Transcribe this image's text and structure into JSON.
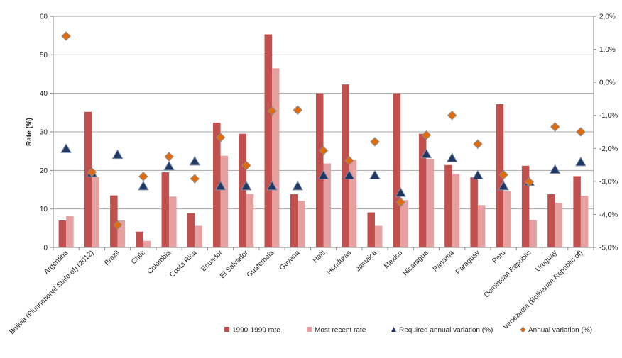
{
  "chart_data": {
    "type": "bar",
    "ylabel": "Rate (%)",
    "ylim": [
      0,
      60
    ],
    "y_ticks": [
      "0",
      "10",
      "20",
      "30",
      "40",
      "50",
      "60"
    ],
    "y2lim": [
      -5.0,
      2.0
    ],
    "y2_ticks": [
      "-5,0%",
      "-4,0%",
      "-3,0%",
      "-2,0%",
      "-1,0%",
      "0,0%",
      "1,0%",
      "2,0%"
    ],
    "grid": true,
    "legend_position": "bottom",
    "categories": [
      "Argentina",
      "Bolivia (Plurinational State of) (2012)",
      "Brazil",
      "Chile",
      "Colombia",
      "Costa Rica",
      "Ecuador",
      "El Salvador",
      "Guatemala",
      "Guyana",
      "Haiti",
      "Honduras",
      "Jamaica",
      "Mexico",
      "Nicaragua",
      "Panama",
      "Paraguay",
      "Peru",
      "Dominican Republic",
      "Uruguay",
      "Venezuela (Bolivarian Republic of)"
    ],
    "series": [
      {
        "name": "1990-1999 rate",
        "axis": "left",
        "kind": "bar",
        "color": "#c0504d",
        "values": [
          7.0,
          35.2,
          13.5,
          4.1,
          19.5,
          8.9,
          32.4,
          29.5,
          55.3,
          13.8,
          40.0,
          42.3,
          9.1,
          40.0,
          29.5,
          21.4,
          18.2,
          37.2,
          21.2,
          13.8,
          18.5
        ]
      },
      {
        "name": "Most recent rate",
        "axis": "left",
        "kind": "bar",
        "color": "#e6a0a0",
        "values": [
          8.2,
          18.3,
          7.0,
          1.7,
          13.2,
          5.6,
          23.8,
          13.9,
          46.5,
          12.1,
          21.8,
          22.8,
          5.6,
          12.3,
          23.0,
          19.1,
          11.0,
          14.6,
          7.1,
          11.6,
          13.4
        ]
      },
      {
        "name": "Required annual variation (%)",
        "axis": "right",
        "kind": "triangle",
        "color": "#1f3864",
        "values": [
          -2.02,
          -2.75,
          -2.2,
          -3.15,
          -2.55,
          -2.4,
          -3.15,
          -3.15,
          -3.15,
          -3.15,
          -2.82,
          -2.82,
          -2.82,
          -3.35,
          -2.18,
          -2.3,
          -2.82,
          -3.15,
          -3.02,
          -2.65,
          -2.42
        ]
      },
      {
        "name": "Annual variation (%)",
        "axis": "right",
        "kind": "diamond",
        "color": "#e36c0a",
        "values": [
          1.4,
          -2.72,
          -4.32,
          -2.85,
          -2.25,
          -2.92,
          -1.67,
          -2.52,
          -0.87,
          -0.84,
          -2.07,
          -2.37,
          -1.8,
          -3.63,
          -1.6,
          -1.0,
          -1.87,
          -2.8,
          -3.02,
          -1.35,
          -1.5
        ]
      }
    ]
  }
}
